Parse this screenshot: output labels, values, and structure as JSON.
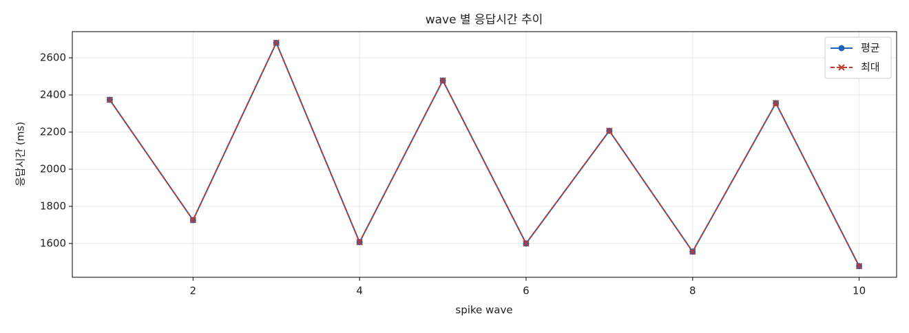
{
  "chart_data": {
    "type": "line",
    "title": "wave 별 응답시간 추이",
    "x_label": "spike wave",
    "y_label": "응답시간 (ms)",
    "x": [
      1,
      2,
      3,
      4,
      5,
      6,
      7,
      8,
      9,
      10
    ],
    "series": [
      {
        "name": "평균",
        "color": "#1f63b8",
        "marker": "circle",
        "dash": "solid",
        "values": [
          2374,
          1726,
          2681,
          1607,
          2478,
          1600,
          2207,
          1556,
          2356,
          1478
        ]
      },
      {
        "name": "최대",
        "color": "#c0392b",
        "marker": "x",
        "dash": "dashed",
        "values": [
          2374,
          1726,
          2681,
          1607,
          2478,
          1600,
          2207,
          1556,
          2356,
          1478
        ]
      }
    ],
    "xlim": [
      0.55,
      10.45
    ],
    "xticks": [
      2,
      4,
      6,
      8,
      10
    ],
    "ylim": [
      1418,
      2741
    ],
    "yticks": [
      1600,
      1800,
      2000,
      2200,
      2400,
      2600
    ],
    "grid": true,
    "legend": "upper right"
  }
}
